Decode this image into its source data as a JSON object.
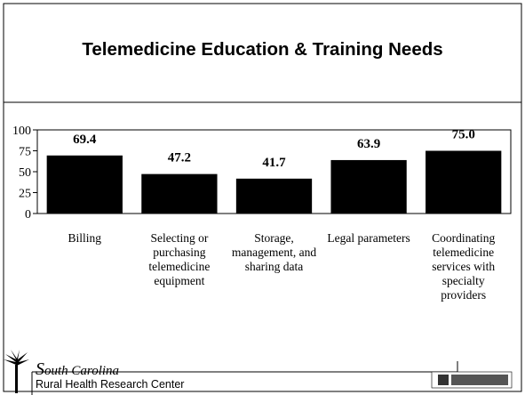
{
  "title": "Telemedicine Education & Training Needs",
  "chart_data": {
    "type": "bar",
    "categories": [
      "Billing",
      "Selecting or purchasing telemedicine equipment",
      "Storage, management, and sharing data",
      "Legal parameters",
      "Coordinating telemedicine services with specialty providers"
    ],
    "values": [
      69.4,
      47.2,
      41.7,
      63.9,
      75.0
    ],
    "value_labels": [
      "69.4",
      "47.2",
      "41.7",
      "63.9",
      "75.0"
    ],
    "color": "#000000",
    "ylim": [
      0,
      100
    ],
    "yticks": [
      0,
      25,
      50,
      75,
      100
    ]
  },
  "footer": {
    "org_name": "South Carolina",
    "org_subtitle": "Rural Health Research Center"
  }
}
